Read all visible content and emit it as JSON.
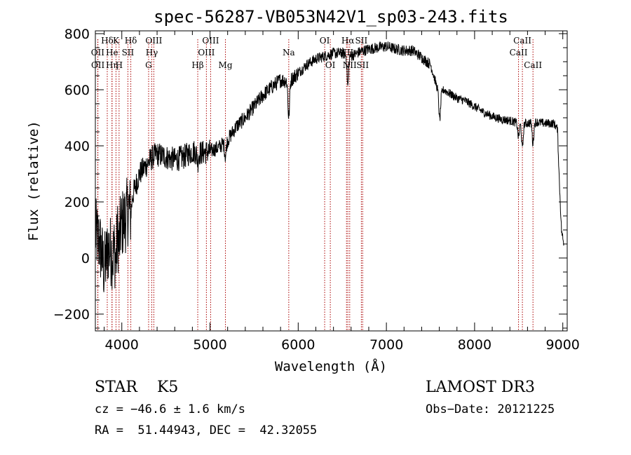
{
  "chart_data": {
    "type": "line",
    "title": "spec-56287-VB053N42V1_sp03-243.fits",
    "xlabel": "Wavelength (Å)",
    "ylabel": "Flux (relative)",
    "xlim": [
      3700,
      9050
    ],
    "ylim": [
      -260,
      810
    ],
    "xticks": [
      4000,
      5000,
      6000,
      7000,
      8000,
      9000
    ],
    "xtick_labels": [
      "4000",
      "5000",
      "6000",
      "7000",
      "8000",
      "9000"
    ],
    "yticks": [
      -200,
      0,
      200,
      400,
      600,
      800
    ],
    "ytick_labels": [
      "−200",
      "0",
      "200",
      "400",
      "600",
      "800"
    ],
    "line_color": "#000000",
    "marker_color": "#aa0000",
    "spectrum_anchors": [
      [
        3700,
        90
      ],
      [
        3750,
        50
      ],
      [
        3800,
        -40
      ],
      [
        3850,
        40
      ],
      [
        3900,
        10
      ],
      [
        3950,
        100
      ],
      [
        4000,
        120
      ],
      [
        4050,
        150
      ],
      [
        4100,
        200
      ],
      [
        4150,
        250
      ],
      [
        4200,
        300
      ],
      [
        4250,
        320
      ],
      [
        4300,
        340
      ],
      [
        4350,
        360
      ],
      [
        4400,
        370
      ],
      [
        4500,
        360
      ],
      [
        4600,
        350
      ],
      [
        4700,
        360
      ],
      [
        4800,
        380
      ],
      [
        4900,
        375
      ],
      [
        5000,
        380
      ],
      [
        5100,
        395
      ],
      [
        5200,
        420
      ],
      [
        5300,
        470
      ],
      [
        5400,
        500
      ],
      [
        5500,
        540
      ],
      [
        5600,
        580
      ],
      [
        5700,
        610
      ],
      [
        5800,
        635
      ],
      [
        5900,
        630
      ],
      [
        6000,
        660
      ],
      [
        6100,
        690
      ],
      [
        6200,
        710
      ],
      [
        6300,
        720
      ],
      [
        6400,
        730
      ],
      [
        6500,
        730
      ],
      [
        6600,
        720
      ],
      [
        6700,
        735
      ],
      [
        6800,
        745
      ],
      [
        6900,
        750
      ],
      [
        7000,
        755
      ],
      [
        7100,
        745
      ],
      [
        7200,
        740
      ],
      [
        7300,
        740
      ],
      [
        7400,
        715
      ],
      [
        7500,
        690
      ],
      [
        7600,
        580
      ],
      [
        7650,
        600
      ],
      [
        7700,
        590
      ],
      [
        7800,
        570
      ],
      [
        7900,
        560
      ],
      [
        8000,
        540
      ],
      [
        8100,
        520
      ],
      [
        8200,
        505
      ],
      [
        8300,
        495
      ],
      [
        8400,
        490
      ],
      [
        8500,
        480
      ],
      [
        8600,
        480
      ],
      [
        8700,
        485
      ],
      [
        8800,
        480
      ],
      [
        8900,
        480
      ],
      [
        8940,
        460
      ],
      [
        8960,
        280
      ],
      [
        8985,
        100
      ],
      [
        9010,
        50
      ]
    ],
    "absorption_features": [
      {
        "x": 3934,
        "depth": 80
      },
      {
        "x": 3969,
        "depth": 60
      },
      {
        "x": 4102,
        "depth": 40
      },
      {
        "x": 4861,
        "depth": 30
      },
      {
        "x": 5175,
        "depth": 50
      },
      {
        "x": 5893,
        "depth": 130
      },
      {
        "x": 6563,
        "depth": 110
      },
      {
        "x": 7605,
        "depth": 90
      },
      {
        "x": 8498,
        "depth": 50
      },
      {
        "x": 8542,
        "depth": 90
      },
      {
        "x": 8662,
        "depth": 75
      }
    ],
    "lines": [
      {
        "label": "Hδ",
        "x": 3835,
        "row": 0
      },
      {
        "label": "OII",
        "x": 3727,
        "row": 1
      },
      {
        "label": "OII",
        "x": 3729,
        "row": 2
      },
      {
        "label": "K",
        "x": 3934,
        "row": 0
      },
      {
        "label": "He",
        "x": 3889,
        "row": 1
      },
      {
        "label": "Hη",
        "x": 3889,
        "row": 2
      },
      {
        "label": "H",
        "x": 3969,
        "row": 2
      },
      {
        "label": "Hδ",
        "x": 4102,
        "row": 0
      },
      {
        "label": "SII",
        "x": 4069,
        "row": 1
      },
      {
        "label": "OIII",
        "x": 4363,
        "row": 0
      },
      {
        "label": "Hγ",
        "x": 4340,
        "row": 1
      },
      {
        "label": "G",
        "x": 4304,
        "row": 2
      },
      {
        "label": "OIII",
        "x": 5007,
        "row": 0
      },
      {
        "label": "OIII",
        "x": 4959,
        "row": 1
      },
      {
        "label": "Hβ",
        "x": 4861,
        "row": 2
      },
      {
        "label": "Mg",
        "x": 5175,
        "row": 2
      },
      {
        "label": "Na",
        "x": 5893,
        "row": 1
      },
      {
        "label": "OI",
        "x": 6300,
        "row": 0
      },
      {
        "label": "OI",
        "x": 6364,
        "row": 2
      },
      {
        "label": "Hα",
        "x": 6563,
        "row": 0
      },
      {
        "label": "SII",
        "x": 6716,
        "row": 0
      },
      {
        "label": "NII",
        "x": 6548,
        "row": 1
      },
      {
        "label": "NII",
        "x": 6584,
        "row": 2
      },
      {
        "label": "SII",
        "x": 6731,
        "row": 2
      },
      {
        "label": "CaII",
        "x": 8542,
        "row": 0
      },
      {
        "label": "CaII",
        "x": 8498,
        "row": 1
      },
      {
        "label": "CaII",
        "x": 8662,
        "row": 2
      }
    ]
  },
  "info": {
    "classification": "STAR    K5",
    "cz": "cz = −46.6 ± 1.6 km/s",
    "coords": "RA =  51.44943, DEC =  42.32055",
    "survey": "LAMOST DR3",
    "obs_date": "Obs−Date: 20121225"
  }
}
